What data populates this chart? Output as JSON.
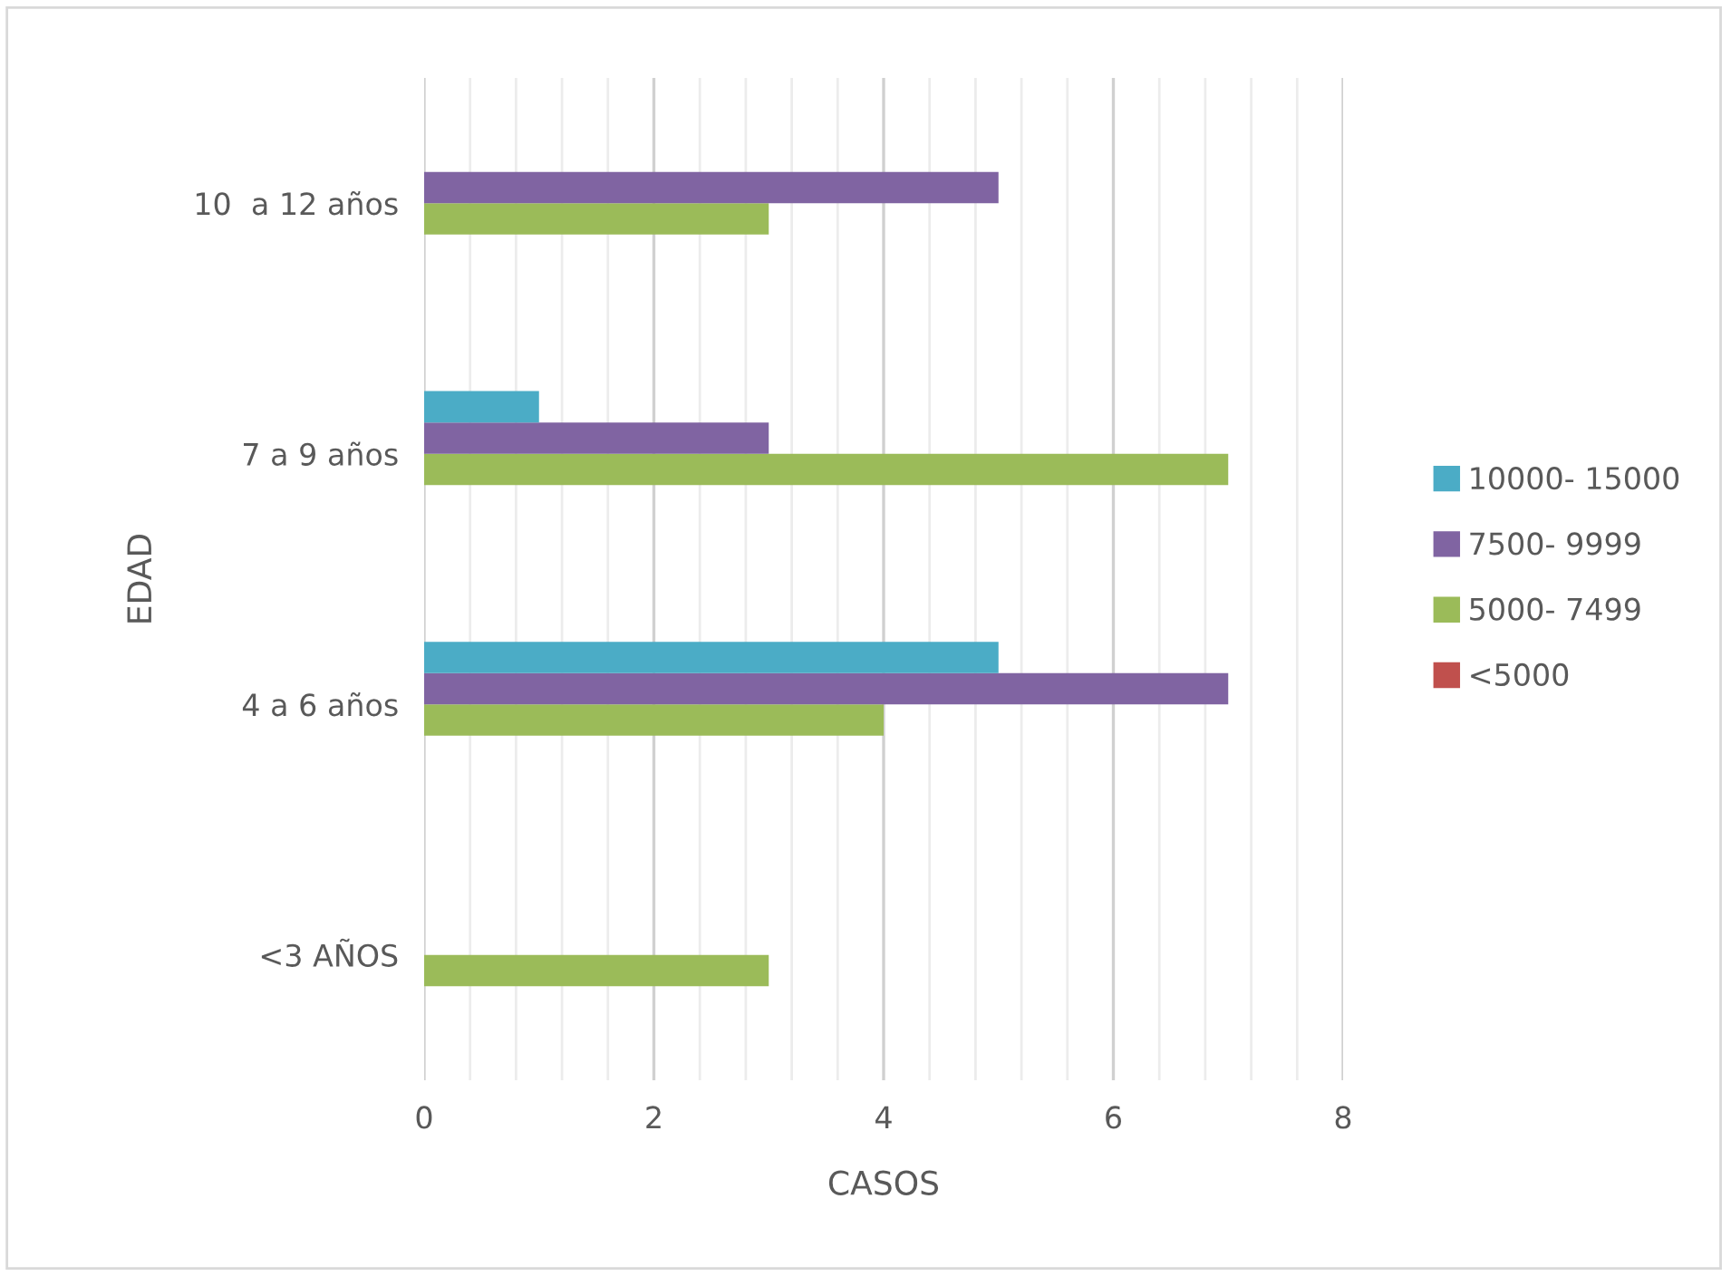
{
  "chart_data": {
    "type": "bar",
    "orientation": "horizontal",
    "xlabel": "CASOS",
    "ylabel": "EDAD",
    "categories": [
      "10  a 12 años",
      "7 a 9 años",
      "4 a 6 años",
      "<3 AÑOS"
    ],
    "series": [
      {
        "name": "<5000",
        "color": "#c0504d",
        "values": [
          0,
          0,
          0,
          0
        ]
      },
      {
        "name": "5000- 7499",
        "color": "#9bbb59",
        "values": [
          3,
          7,
          4,
          3
        ]
      },
      {
        "name": "7500- 9999",
        "color": "#8064a2",
        "values": [
          5,
          3,
          7,
          0
        ]
      },
      {
        "name": "10000- 15000",
        "color": "#4bacc6",
        "values": [
          0,
          1,
          5,
          0
        ]
      }
    ],
    "xlim": [
      0,
      8
    ],
    "xticks": [
      0,
      {
        "value": 0.4,
        "label": null
      },
      {
        "value": 0.8,
        "label": null
      },
      {
        "value": 1.2,
        "label": null
      },
      {
        "value": 1.6,
        "label": null
      },
      2,
      {
        "value": 2.4,
        "label": null
      },
      {
        "value": 2.8,
        "label": null
      },
      {
        "value": 3.2,
        "label": null
      },
      {
        "value": 3.6,
        "label": null
      },
      4,
      {
        "value": 4.4,
        "label": null
      },
      {
        "value": 4.8,
        "label": null
      },
      {
        "value": 5.2,
        "label": null
      },
      {
        "value": 5.6,
        "label": null
      },
      6,
      {
        "value": 6.4,
        "label": null
      },
      {
        "value": 6.8,
        "label": null
      },
      {
        "value": 7.2,
        "label": null
      },
      {
        "value": 7.6,
        "label": null
      },
      8
    ],
    "grid": "x",
    "legend": "right"
  }
}
